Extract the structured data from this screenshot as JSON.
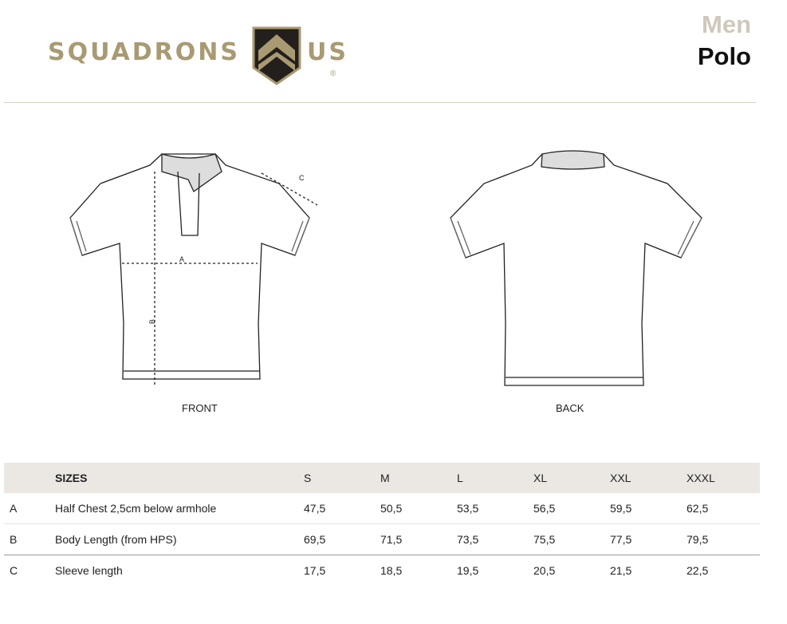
{
  "brand": {
    "name_left": "SQUADRONS",
    "name_right": "US",
    "registered": "®",
    "colors": {
      "gold": "#a89a72",
      "dark": "#231f1c"
    }
  },
  "title": {
    "category": "Men",
    "product": "Polo"
  },
  "views": {
    "front": "FRONT",
    "back": "BACK",
    "markers": {
      "a": "A",
      "b": "B",
      "c": "C"
    }
  },
  "table": {
    "header": {
      "label": "SIZES",
      "sizes": [
        "S",
        "M",
        "L",
        "XL",
        "XXL",
        "XXXL"
      ]
    },
    "rows": [
      {
        "code": "A",
        "label": "Half Chest 2,5cm below armhole",
        "values": [
          "47,5",
          "50,5",
          "53,5",
          "56,5",
          "59,5",
          "62,5"
        ]
      },
      {
        "code": "B",
        "label": "Body Length (from HPS)",
        "values": [
          "69,5",
          "71,5",
          "73,5",
          "75,5",
          "77,5",
          "79,5"
        ]
      },
      {
        "code": "C",
        "label": "Sleeve length",
        "values": [
          "17,5",
          "18,5",
          "19,5",
          "20,5",
          "21,5",
          "22,5"
        ]
      }
    ]
  }
}
